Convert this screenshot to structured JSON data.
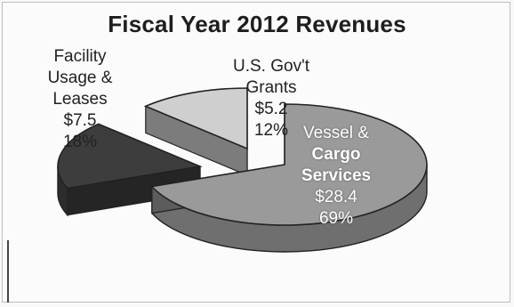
{
  "chart_data": {
    "type": "pie",
    "title": "Fiscal Year 2012 Revenues",
    "slices": [
      {
        "label": "Vessel & Cargo Services",
        "value_text": "$28.4",
        "value": 28.4,
        "percent": 69,
        "percent_text": "69%",
        "color": "#9a9a9a"
      },
      {
        "label": "Facility Usage & Leases",
        "value_text": "$7.5",
        "value": 7.5,
        "percent": 18,
        "percent_text": "18%",
        "color": "#3d3d3d"
      },
      {
        "label": "U.S. Gov't Grants",
        "value_text": "$5.2",
        "value": 5.2,
        "percent": 12,
        "percent_text": "12%",
        "color": "#cfcfcf"
      }
    ],
    "labels": {
      "vessel": {
        "line1": "Vessel &",
        "line2": "Cargo",
        "line3": "Services",
        "value": "$28.4",
        "percent": "69%"
      },
      "facility": {
        "line1": "Facility",
        "line2": "Usage &",
        "line3": "Leases",
        "value": "$7.5",
        "percent": "18%"
      },
      "grants": {
        "line1": "U.S. Gov't",
        "line2": "Grants",
        "value": "$5.2",
        "percent": "12%"
      }
    },
    "legend": "none",
    "style": "3d-exploded"
  }
}
